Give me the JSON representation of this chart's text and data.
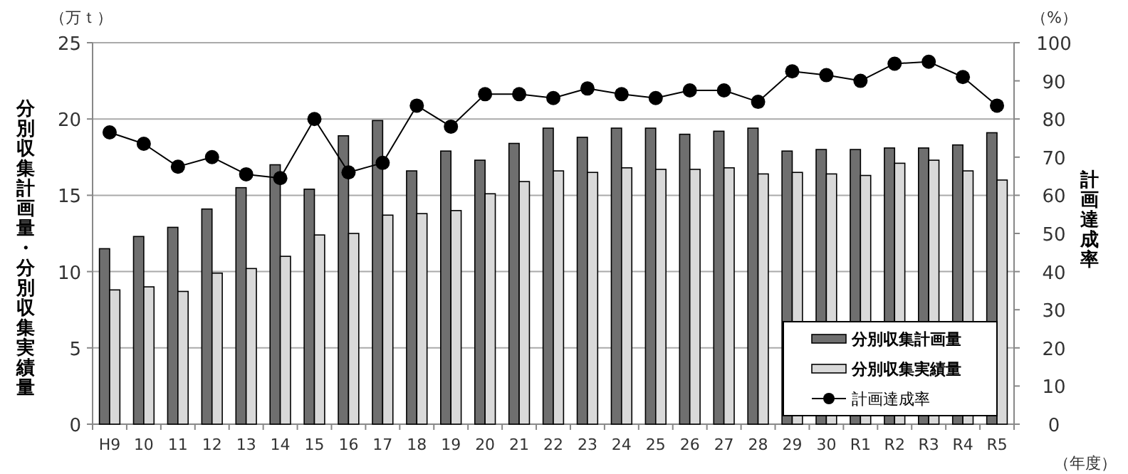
{
  "chart_data": {
    "type": "bar",
    "ylabel": "分別収集計画量・分別収集実績量",
    "y2label": "計画達成率",
    "xlabel": "（年度）",
    "annotations": [
      "（万ｔ）",
      "（%）"
    ],
    "categories": [
      "H9",
      "10",
      "11",
      "12",
      "13",
      "14",
      "15",
      "16",
      "17",
      "18",
      "19",
      "20",
      "21",
      "22",
      "23",
      "24",
      "25",
      "26",
      "27",
      "28",
      "29",
      "30",
      "R1",
      "R2",
      "R3",
      "R4",
      "R5"
    ],
    "series": [
      {
        "name": "分別収集計画量",
        "color": "#6f6f6f",
        "values": [
          11.5,
          12.3,
          12.9,
          14.1,
          15.5,
          17.0,
          15.4,
          18.9,
          19.9,
          16.6,
          17.9,
          17.3,
          18.4,
          19.4,
          18.8,
          19.4,
          19.4,
          19.0,
          19.2,
          19.4,
          17.9,
          18.0,
          18.0,
          18.1,
          18.1,
          18.3,
          19.1
        ]
      },
      {
        "name": "分別収集実績量",
        "color": "#d9d9d9",
        "values": [
          8.8,
          9.0,
          8.7,
          9.9,
          10.2,
          11.0,
          12.4,
          12.5,
          13.7,
          13.8,
          14.0,
          15.1,
          15.9,
          16.6,
          16.5,
          16.8,
          16.7,
          16.7,
          16.8,
          16.4,
          16.5,
          16.4,
          16.3,
          17.1,
          17.3,
          16.6,
          16.0
        ]
      },
      {
        "name": "計画達成率",
        "type": "line",
        "axis": "y2",
        "color": "#000000",
        "marker": "circle",
        "values": [
          76.5,
          73.5,
          67.5,
          70.0,
          65.5,
          64.5,
          80,
          66,
          68.5,
          83.5,
          78,
          86.5,
          86.5,
          85.5,
          88,
          86.5,
          85.5,
          87.5,
          87.5,
          84.5,
          92.5,
          91.5,
          90,
          94.5,
          95,
          91,
          83.5
        ]
      }
    ],
    "ylim": [
      0,
      25
    ],
    "yticks": [
      0,
      5,
      10,
      15,
      20,
      25
    ],
    "y2lim": [
      0,
      100
    ],
    "y2ticks": [
      0,
      10,
      20,
      30,
      40,
      50,
      60,
      70,
      80,
      90,
      100
    ],
    "grid": "y",
    "legend": "bottom right"
  }
}
